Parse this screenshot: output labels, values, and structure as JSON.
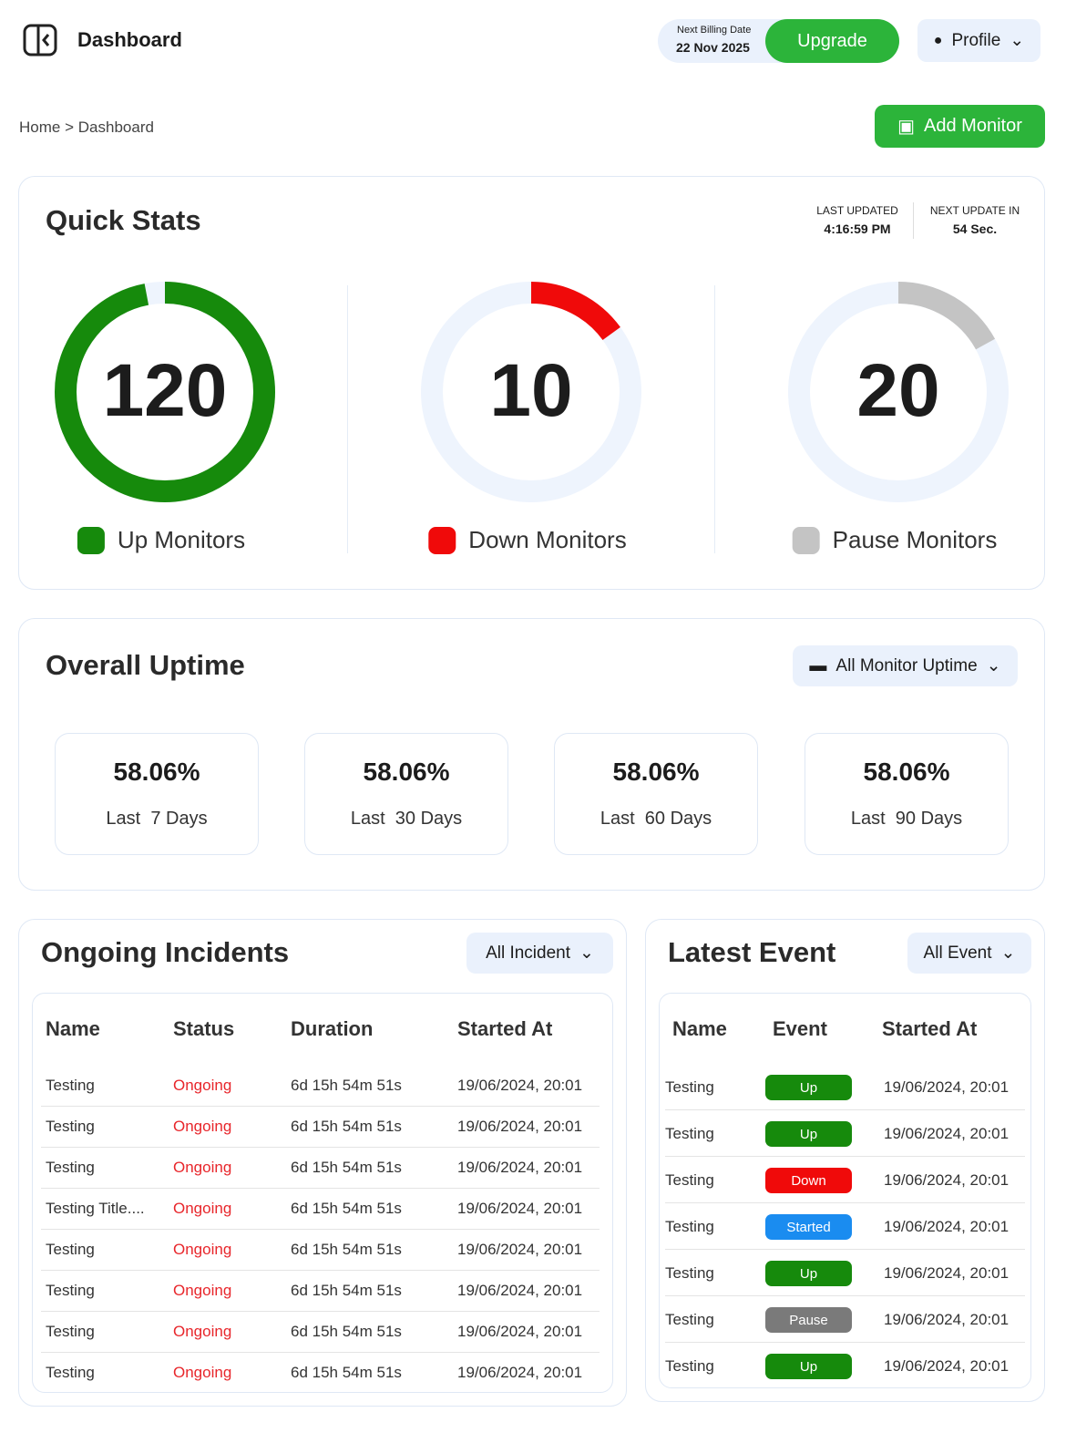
{
  "header": {
    "title": "Dashboard",
    "billing_label": "Next Billing Date",
    "billing_date": "22 Nov 2025",
    "upgrade": "Upgrade",
    "profile": "Profile"
  },
  "breadcrumb": {
    "home": "Home",
    "separator": ">",
    "current": "Dashboard"
  },
  "add_monitor": "Add Monitor",
  "quick_stats": {
    "title": "Quick Stats",
    "last_updated_label": "LAST UPDATED",
    "last_updated": "4:16:59 PM",
    "next_update_label": "NEXT UPDATE IN",
    "next_update": "54 Sec.",
    "gauges": [
      {
        "value": "120",
        "label": "Up Monitors",
        "color": "#168a0c",
        "ring_percent": 97
      },
      {
        "value": "10",
        "label": "Down Monitors",
        "color": "#f00a0a",
        "ring_percent": 15
      },
      {
        "value": "20",
        "label": "Pause Monitors",
        "color": "#c4c4c4",
        "ring_percent": 17
      }
    ]
  },
  "overall_uptime": {
    "title": "Overall Uptime",
    "filter": "All Monitor Uptime",
    "periods": [
      {
        "percent": "58.06%",
        "label": "Last  7 Days"
      },
      {
        "percent": "58.06%",
        "label": "Last  30 Days"
      },
      {
        "percent": "58.06%",
        "label": "Last  60 Days"
      },
      {
        "percent": "58.06%",
        "label": "Last  90 Days"
      }
    ]
  },
  "incidents": {
    "title": "Ongoing Incidents",
    "filter": "All Incident",
    "columns": [
      "Name",
      "Status",
      "Duration",
      "Started At"
    ],
    "rows": [
      [
        "Testing",
        "Ongoing",
        "6d 15h 54m 51s",
        "19/06/2024, 20:01"
      ],
      [
        "Testing",
        "Ongoing",
        "6d 15h 54m 51s",
        "19/06/2024, 20:01"
      ],
      [
        "Testing",
        "Ongoing",
        "6d 15h 54m 51s",
        "19/06/2024, 20:01"
      ],
      [
        "Testing Title....",
        "Ongoing",
        "6d 15h 54m 51s",
        "19/06/2024, 20:01"
      ],
      [
        "Testing",
        "Ongoing",
        "6d 15h 54m 51s",
        "19/06/2024, 20:01"
      ],
      [
        "Testing",
        "Ongoing",
        "6d 15h 54m 51s",
        "19/06/2024, 20:01"
      ],
      [
        "Testing",
        "Ongoing",
        "6d 15h 54m 51s",
        "19/06/2024, 20:01"
      ],
      [
        "Testing",
        "Ongoing",
        "6d 15h 54m 51s",
        "19/06/2024, 20:01"
      ]
    ]
  },
  "events": {
    "title": "Latest Event",
    "filter": "All Event",
    "columns": [
      "Name",
      "Event",
      "Started At"
    ],
    "rows": [
      {
        "name": "Testing",
        "event": "Up",
        "color": "#168a0c",
        "started_at": "19/06/2024, 20:01"
      },
      {
        "name": "Testing",
        "event": "Up",
        "color": "#168a0c",
        "started_at": "19/06/2024, 20:01"
      },
      {
        "name": "Testing",
        "event": "Down",
        "color": "#f00a0a",
        "started_at": "19/06/2024, 20:01"
      },
      {
        "name": "Testing",
        "event": "Started",
        "color": "#1a8cf0",
        "started_at": "19/06/2024, 20:01"
      },
      {
        "name": "Testing",
        "event": "Up",
        "color": "#168a0c",
        "started_at": "19/06/2024, 20:01"
      },
      {
        "name": "Testing",
        "event": "Pause",
        "color": "#7a7a7a",
        "started_at": "19/06/2024, 20:01"
      },
      {
        "name": "Testing",
        "event": "Up",
        "color": "#168a0c",
        "started_at": "19/06/2024, 20:01"
      }
    ]
  }
}
